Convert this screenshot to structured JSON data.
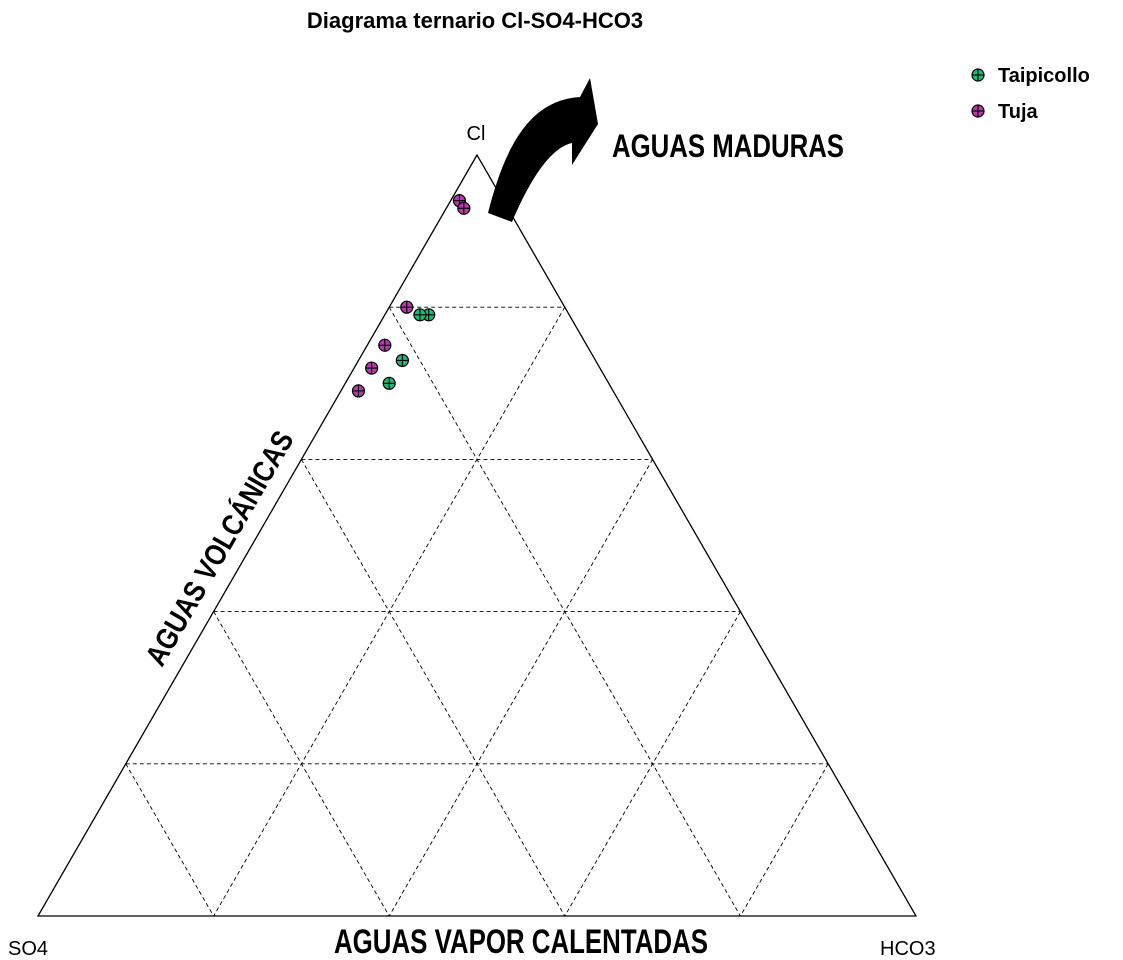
{
  "chart_data": {
    "type": "scatter",
    "subtype": "ternary",
    "title": "Diagrama ternario Cl-SO4-HCO3",
    "vertices": {
      "top": "Cl",
      "left": "SO4",
      "right": "HCO3"
    },
    "grid": true,
    "grid_step": 20,
    "legend_position": "top-right",
    "series": [
      {
        "name": "Taipicollo",
        "color": "#22b573",
        "points": [
          {
            "Cl": 79,
            "SO4": 16,
            "HCO3": 5
          },
          {
            "Cl": 79,
            "SO4": 17,
            "HCO3": 4
          },
          {
            "Cl": 73,
            "SO4": 22,
            "HCO3": 5
          },
          {
            "Cl": 70,
            "SO4": 25,
            "HCO3": 5
          }
        ]
      },
      {
        "name": "Tuja",
        "color": "#b43ca8",
        "points": [
          {
            "Cl": 94,
            "SO4": 5,
            "HCO3": 1
          },
          {
            "Cl": 93,
            "SO4": 5,
            "HCO3": 2
          },
          {
            "Cl": 80,
            "SO4": 18,
            "HCO3": 2
          },
          {
            "Cl": 75,
            "SO4": 23,
            "HCO3": 2
          },
          {
            "Cl": 72,
            "SO4": 26,
            "HCO3": 2
          },
          {
            "Cl": 69,
            "SO4": 29,
            "HCO3": 2
          }
        ]
      }
    ],
    "annotations": [
      {
        "text": "AGUAS MADURAS",
        "placement": "near Cl vertex, with arrow"
      },
      {
        "text": "AGUAS VOLCÁNICAS",
        "placement": "along Cl-SO4 edge"
      },
      {
        "text": "AGUAS VAPOR CALENTADAS",
        "placement": "along SO4-HCO3 edge"
      }
    ]
  }
}
